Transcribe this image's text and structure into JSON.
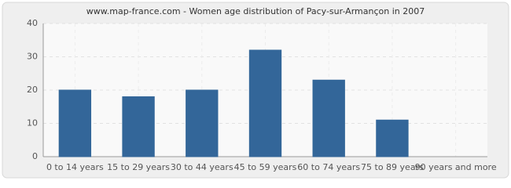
{
  "chart_data": {
    "type": "bar",
    "title": "www.map-france.com - Women age distribution of Pacy-sur-Armançon in 2007",
    "categories": [
      "0 to 14 years",
      "15 to 29 years",
      "30 to 44 years",
      "45 to 59 years",
      "60 to 74 years",
      "75 to 89 years",
      "90 years and more"
    ],
    "values": [
      20,
      18,
      20,
      32,
      23,
      11,
      0
    ],
    "color": "#336699",
    "ylim": [
      0,
      40
    ],
    "yticks": [
      0,
      10,
      20,
      30,
      40
    ],
    "grid": true
  }
}
